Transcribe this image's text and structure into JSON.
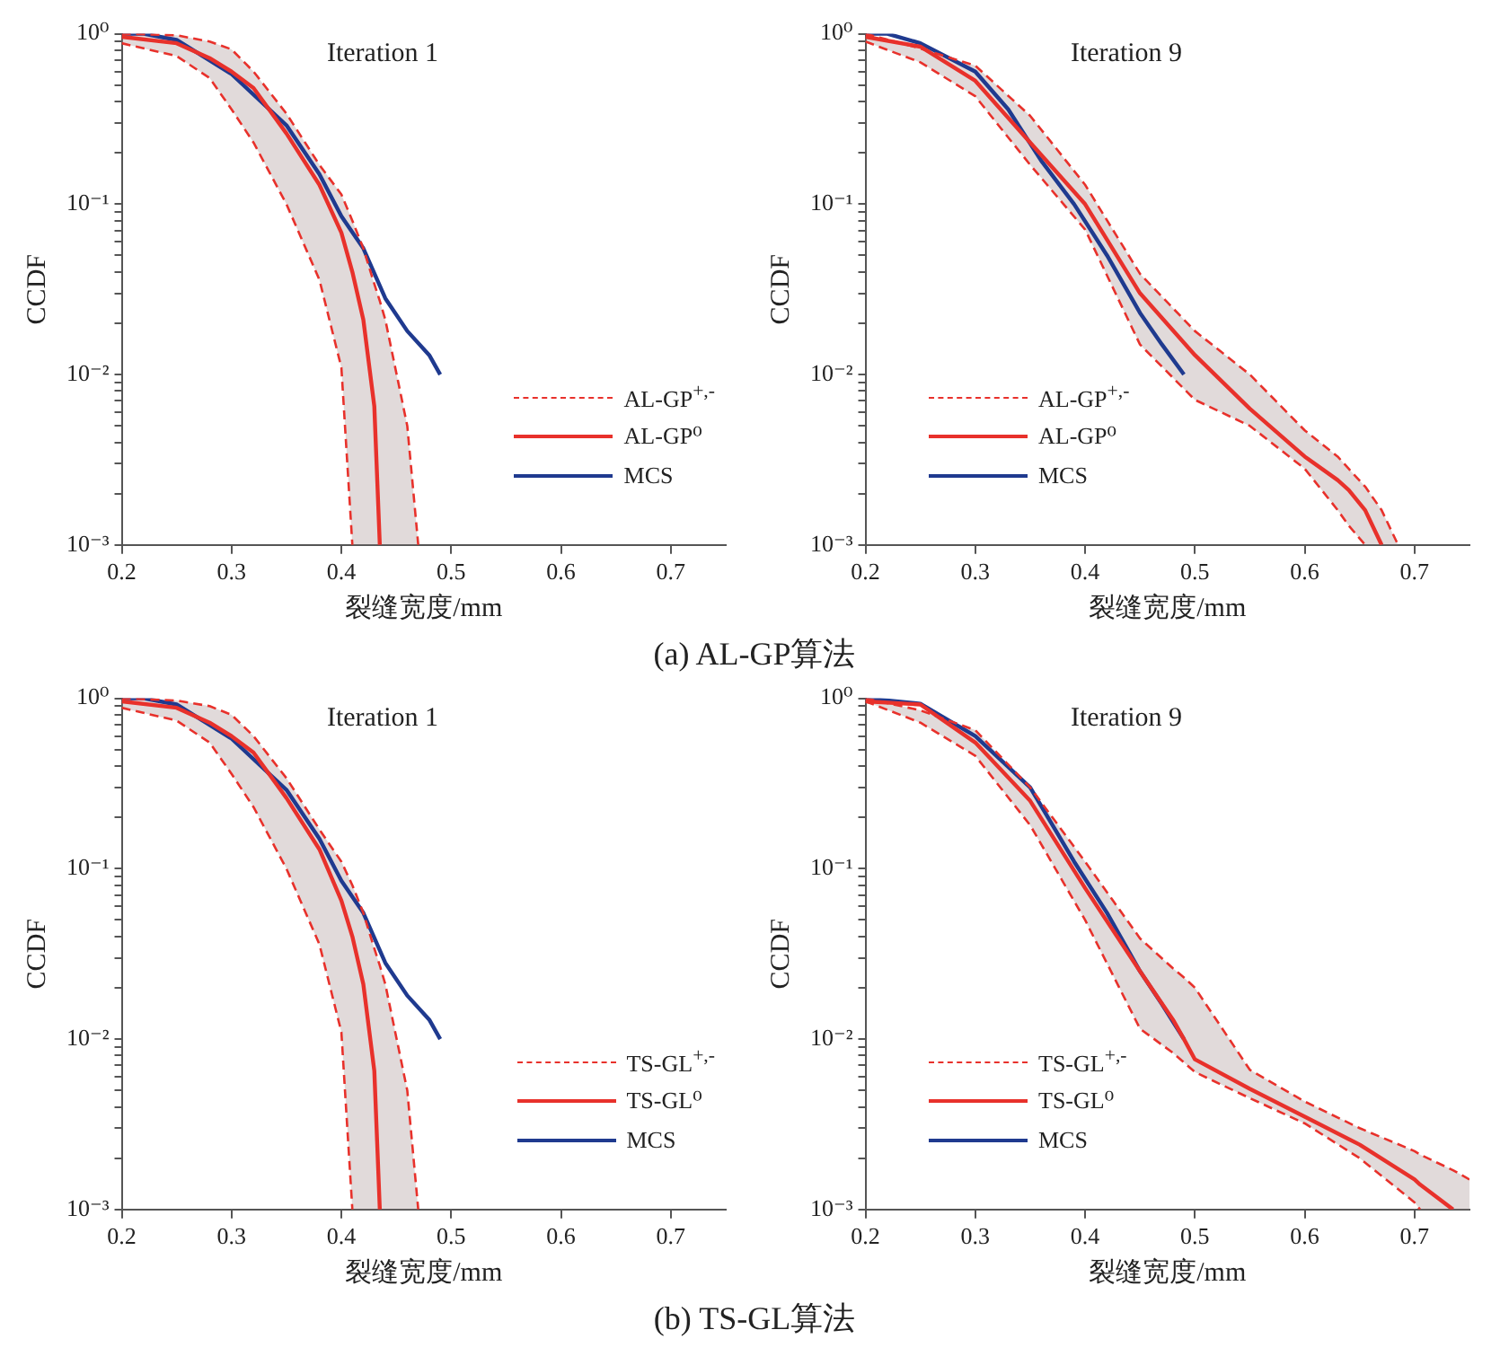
{
  "chart_data": [
    {
      "type": "line",
      "title": "Iteration 1",
      "xlabel": "裂缝宽度/mm",
      "ylabel": "CCDF",
      "annotations": [
        "(a) AL-GP算法"
      ],
      "xlim": [
        0.2,
        0.75
      ],
      "xticks": [
        0.2,
        0.3,
        0.4,
        0.5,
        0.6,
        0.7
      ],
      "ylim": [
        0.001,
        1
      ],
      "log": "y",
      "yticks": [
        {
          "value": 0.001,
          "label": "10⁻³"
        },
        {
          "value": 0.002,
          "label": null
        },
        {
          "value": 0.003,
          "label": null
        },
        {
          "value": 0.004,
          "label": null
        },
        {
          "value": 0.005,
          "label": null
        },
        {
          "value": 0.006,
          "label": null
        },
        {
          "value": 0.007,
          "label": null
        },
        {
          "value": 0.008,
          "label": null
        },
        {
          "value": 0.009,
          "label": null
        },
        {
          "value": 0.01,
          "label": "10⁻²"
        },
        {
          "value": 0.02,
          "label": null
        },
        {
          "value": 0.03,
          "label": null
        },
        {
          "value": 0.04,
          "label": null
        },
        {
          "value": 0.05,
          "label": null
        },
        {
          "value": 0.06,
          "label": null
        },
        {
          "value": 0.07,
          "label": null
        },
        {
          "value": 0.08,
          "label": null
        },
        {
          "value": 0.09,
          "label": null
        },
        {
          "value": 0.1,
          "label": "10⁻¹"
        },
        {
          "value": 0.2,
          "label": null
        },
        {
          "value": 0.3,
          "label": null
        },
        {
          "value": 0.4,
          "label": null
        },
        {
          "value": 0.5,
          "label": null
        },
        {
          "value": 0.6,
          "label": null
        },
        {
          "value": 0.7,
          "label": null
        },
        {
          "value": 0.8,
          "label": null
        },
        {
          "value": 0.9,
          "label": null
        },
        {
          "value": 1,
          "label": "10⁰"
        }
      ],
      "grid": false,
      "legend": "bottom right",
      "marker": "none",
      "series": [
        {
          "name": "AL-GP$^{+,-}$",
          "color": "#e8312b",
          "line_style": "dashed",
          "x": [
            0.2,
            0.25,
            0.28,
            0.3,
            0.32,
            0.35,
            0.38,
            0.4,
            0.41,
            0.42,
            0.43,
            0.435,
            0.44,
            0.46,
            0.47
          ],
          "values": [
            1.0,
            0.98,
            0.9,
            0.81,
            0.6,
            0.34,
            0.17,
            0.114,
            0.08,
            0.055,
            0.034,
            0.027,
            0.021,
            0.005,
            0.001
          ]
        },
        {
          "color": "#e8312b",
          "line_style": "dashed",
          "x": [
            0.2,
            0.25,
            0.28,
            0.3,
            0.32,
            0.35,
            0.38,
            0.4,
            0.41
          ],
          "values": [
            0.88,
            0.74,
            0.55,
            0.36,
            0.23,
            0.1,
            0.036,
            0.011,
            0.001
          ]
        },
        {
          "name": "AL-GP⁰",
          "color": "#e8312b",
          "line_style": "solid",
          "x": [
            0.2,
            0.25,
            0.28,
            0.3,
            0.32,
            0.35,
            0.38,
            0.4,
            0.41,
            0.42,
            0.43,
            0.435,
            0.44,
            0.46,
            0.47
          ],
          "values": [
            0.96,
            0.88,
            0.72,
            0.6,
            0.48,
            0.26,
            0.13,
            0.068,
            0.04,
            0.021,
            0.0065,
            0.001,
            null,
            null,
            null
          ],
          "upper": [
            1.0,
            0.98,
            0.9,
            0.81,
            0.6,
            0.34,
            0.17,
            0.114,
            0.08,
            0.055,
            0.034,
            0.027,
            0.021,
            0.005,
            0.001
          ],
          "lower": [
            0.88,
            0.74,
            0.55,
            0.36,
            0.23,
            0.1,
            0.036,
            0.011,
            0.001,
            0.001,
            0.001,
            0.001,
            0.001,
            0.001,
            0.001
          ]
        },
        {
          "name": "MCS",
          "color": "#1f3a8f",
          "line_style": "solid",
          "x": [
            0.2,
            0.22,
            0.25,
            0.3,
            0.35,
            0.38,
            0.4,
            0.42,
            0.44,
            0.46,
            0.48,
            0.49
          ],
          "values": [
            1.0,
            1.0,
            0.92,
            0.58,
            0.29,
            0.15,
            0.085,
            0.055,
            0.028,
            0.018,
            0.013,
            0.01
          ]
        }
      ]
    },
    {
      "type": "line",
      "title": "Iteration 9",
      "xlabel": "裂缝宽度/mm",
      "ylabel": "CCDF",
      "xlim": [
        0.2,
        0.75
      ],
      "xticks": [
        0.2,
        0.3,
        0.4,
        0.5,
        0.6,
        0.7
      ],
      "ylim": [
        0.001,
        1
      ],
      "log": "y",
      "yticks": [
        {
          "value": 0.001,
          "label": "10⁻³"
        },
        {
          "value": 0.002,
          "label": null
        },
        {
          "value": 0.003,
          "label": null
        },
        {
          "value": 0.004,
          "label": null
        },
        {
          "value": 0.005,
          "label": null
        },
        {
          "value": 0.006,
          "label": null
        },
        {
          "value": 0.007,
          "label": null
        },
        {
          "value": 0.008,
          "label": null
        },
        {
          "value": 0.009,
          "label": null
        },
        {
          "value": 0.01,
          "label": "10⁻²"
        },
        {
          "value": 0.02,
          "label": null
        },
        {
          "value": 0.03,
          "label": null
        },
        {
          "value": 0.04,
          "label": null
        },
        {
          "value": 0.05,
          "label": null
        },
        {
          "value": 0.06,
          "label": null
        },
        {
          "value": 0.07,
          "label": null
        },
        {
          "value": 0.08,
          "label": null
        },
        {
          "value": 0.09,
          "label": null
        },
        {
          "value": 0.1,
          "label": "10⁻¹"
        },
        {
          "value": 0.2,
          "label": null
        },
        {
          "value": 0.3,
          "label": null
        },
        {
          "value": 0.4,
          "label": null
        },
        {
          "value": 0.5,
          "label": null
        },
        {
          "value": 0.6,
          "label": null
        },
        {
          "value": 0.7,
          "label": null
        },
        {
          "value": 0.8,
          "label": null
        },
        {
          "value": 0.9,
          "label": null
        },
        {
          "value": 1,
          "label": "10⁰"
        }
      ],
      "grid": false,
      "legend": "bottom left",
      "marker": "none",
      "series": [
        {
          "name": "AL-GP$^{+,-}$",
          "color": "#e8312b",
          "line_style": "dashed",
          "x": [
            0.2,
            0.25,
            0.3,
            0.35,
            0.4,
            0.45,
            0.5,
            0.55,
            0.6,
            0.63,
            0.64,
            0.655,
            0.67,
            0.685
          ],
          "values": [
            1.0,
            0.82,
            0.65,
            0.33,
            0.13,
            0.039,
            0.018,
            0.01,
            0.0047,
            0.0033,
            0.0028,
            0.0022,
            0.0016,
            0.001
          ]
        },
        {
          "color": "#e8312b",
          "line_style": "dashed",
          "x": [
            0.2,
            0.25,
            0.3,
            0.35,
            0.4,
            0.45,
            0.5,
            0.55,
            0.6,
            0.63,
            0.64,
            0.655
          ],
          "values": [
            0.9,
            0.68,
            0.43,
            0.17,
            0.071,
            0.015,
            0.0071,
            0.005,
            0.0028,
            0.0016,
            0.0013,
            0.001
          ]
        },
        {
          "name": "AL-GP⁰",
          "color": "#e8312b",
          "line_style": "solid",
          "x": [
            0.2,
            0.25,
            0.3,
            0.35,
            0.4,
            0.45,
            0.5,
            0.55,
            0.6,
            0.63,
            0.64,
            0.655,
            0.67,
            0.685
          ],
          "values": [
            0.96,
            0.84,
            0.53,
            0.23,
            0.1,
            0.03,
            0.013,
            0.0063,
            0.0033,
            0.0024,
            0.0021,
            0.0016,
            0.001,
            null
          ],
          "upper": [
            1.0,
            0.82,
            0.65,
            0.33,
            0.13,
            0.039,
            0.018,
            0.01,
            0.0047,
            0.0033,
            0.0028,
            0.0022,
            0.0016,
            0.001
          ],
          "lower": [
            0.9,
            0.68,
            0.43,
            0.17,
            0.071,
            0.015,
            0.0071,
            0.005,
            0.0028,
            0.0016,
            0.0013,
            0.001,
            0.001,
            0.001
          ]
        },
        {
          "name": "MCS",
          "color": "#1f3a8f",
          "line_style": "solid",
          "x": [
            0.2,
            0.22,
            0.25,
            0.3,
            0.33,
            0.36,
            0.39,
            0.42,
            0.45,
            0.47,
            0.49
          ],
          "values": [
            1.0,
            1.0,
            0.88,
            0.6,
            0.36,
            0.18,
            0.1,
            0.05,
            0.023,
            0.015,
            0.01
          ]
        }
      ]
    },
    {
      "type": "line",
      "title": "Iteration 1",
      "xlabel": "裂缝宽度/mm",
      "ylabel": "CCDF",
      "annotations": [
        "(b) TS-GL算法"
      ],
      "xlim": [
        0.2,
        0.75
      ],
      "xticks": [
        0.2,
        0.3,
        0.4,
        0.5,
        0.6,
        0.7
      ],
      "ylim": [
        0.001,
        1
      ],
      "log": "y",
      "yticks": [
        {
          "value": 0.001,
          "label": "10⁻³"
        },
        {
          "value": 0.002,
          "label": null
        },
        {
          "value": 0.003,
          "label": null
        },
        {
          "value": 0.004,
          "label": null
        },
        {
          "value": 0.005,
          "label": null
        },
        {
          "value": 0.006,
          "label": null
        },
        {
          "value": 0.007,
          "label": null
        },
        {
          "value": 0.008,
          "label": null
        },
        {
          "value": 0.009,
          "label": null
        },
        {
          "value": 0.01,
          "label": "10⁻²"
        },
        {
          "value": 0.02,
          "label": null
        },
        {
          "value": 0.03,
          "label": null
        },
        {
          "value": 0.04,
          "label": null
        },
        {
          "value": 0.05,
          "label": null
        },
        {
          "value": 0.06,
          "label": null
        },
        {
          "value": 0.07,
          "label": null
        },
        {
          "value": 0.08,
          "label": null
        },
        {
          "value": 0.09,
          "label": null
        },
        {
          "value": 0.1,
          "label": "10⁻¹"
        },
        {
          "value": 0.2,
          "label": null
        },
        {
          "value": 0.3,
          "label": null
        },
        {
          "value": 0.4,
          "label": null
        },
        {
          "value": 0.5,
          "label": null
        },
        {
          "value": 0.6,
          "label": null
        },
        {
          "value": 0.7,
          "label": null
        },
        {
          "value": 0.8,
          "label": null
        },
        {
          "value": 0.9,
          "label": null
        },
        {
          "value": 1,
          "label": "10⁰"
        }
      ],
      "grid": false,
      "legend": "bottom right",
      "marker": "none",
      "series": [
        {
          "name": "TS-GL$^{+,-}$",
          "color": "#e8312b",
          "line_style": "dashed",
          "x": [
            0.2,
            0.25,
            0.28,
            0.3,
            0.32,
            0.35,
            0.38,
            0.4,
            0.41,
            0.42,
            0.43,
            0.435,
            0.44,
            0.46,
            0.47
          ],
          "values": [
            1.0,
            0.97,
            0.9,
            0.8,
            0.6,
            0.34,
            0.17,
            0.11,
            0.08,
            0.055,
            0.034,
            0.027,
            0.021,
            0.005,
            0.001
          ]
        },
        {
          "color": "#e8312b",
          "line_style": "dashed",
          "x": [
            0.2,
            0.25,
            0.28,
            0.3,
            0.32,
            0.35,
            0.38,
            0.4,
            0.41
          ],
          "values": [
            0.88,
            0.74,
            0.55,
            0.36,
            0.23,
            0.1,
            0.036,
            0.011,
            0.001
          ]
        },
        {
          "name": "TS-GL⁰",
          "color": "#e8312b",
          "line_style": "solid",
          "x": [
            0.2,
            0.25,
            0.28,
            0.3,
            0.32,
            0.35,
            0.38,
            0.4,
            0.41,
            0.42,
            0.43,
            0.435,
            0.44,
            0.46,
            0.47
          ],
          "values": [
            0.96,
            0.88,
            0.72,
            0.6,
            0.48,
            0.26,
            0.13,
            0.065,
            0.04,
            0.021,
            0.0065,
            0.001,
            null,
            null,
            null
          ],
          "upper": [
            1.0,
            0.97,
            0.9,
            0.8,
            0.6,
            0.34,
            0.17,
            0.11,
            0.08,
            0.055,
            0.034,
            0.027,
            0.021,
            0.005,
            0.001
          ],
          "lower": [
            0.88,
            0.74,
            0.55,
            0.36,
            0.23,
            0.1,
            0.036,
            0.011,
            0.001,
            0.001,
            0.001,
            0.001,
            0.001,
            0.001,
            0.001
          ]
        },
        {
          "name": "MCS",
          "color": "#1f3a8f",
          "line_style": "solid",
          "x": [
            0.2,
            0.22,
            0.25,
            0.3,
            0.35,
            0.38,
            0.4,
            0.42,
            0.44,
            0.46,
            0.48,
            0.49
          ],
          "values": [
            1.0,
            1.0,
            0.92,
            0.58,
            0.29,
            0.15,
            0.085,
            0.055,
            0.028,
            0.018,
            0.013,
            0.01
          ]
        }
      ]
    },
    {
      "type": "line",
      "title": "Iteration 9",
      "xlabel": "裂缝宽度/mm",
      "ylabel": "CCDF",
      "xlim": [
        0.2,
        0.75
      ],
      "xticks": [
        0.2,
        0.3,
        0.4,
        0.5,
        0.6,
        0.7
      ],
      "ylim": [
        0.001,
        1
      ],
      "log": "y",
      "yticks": [
        {
          "value": 0.001,
          "label": "10⁻³"
        },
        {
          "value": 0.002,
          "label": null
        },
        {
          "value": 0.003,
          "label": null
        },
        {
          "value": 0.004,
          "label": null
        },
        {
          "value": 0.005,
          "label": null
        },
        {
          "value": 0.006,
          "label": null
        },
        {
          "value": 0.007,
          "label": null
        },
        {
          "value": 0.008,
          "label": null
        },
        {
          "value": 0.009,
          "label": null
        },
        {
          "value": 0.01,
          "label": "10⁻²"
        },
        {
          "value": 0.02,
          "label": null
        },
        {
          "value": 0.03,
          "label": null
        },
        {
          "value": 0.04,
          "label": null
        },
        {
          "value": 0.05,
          "label": null
        },
        {
          "value": 0.06,
          "label": null
        },
        {
          "value": 0.07,
          "label": null
        },
        {
          "value": 0.08,
          "label": null
        },
        {
          "value": 0.09,
          "label": null
        },
        {
          "value": 0.1,
          "label": "10⁻¹"
        },
        {
          "value": 0.2,
          "label": null
        },
        {
          "value": 0.3,
          "label": null
        },
        {
          "value": 0.4,
          "label": null
        },
        {
          "value": 0.5,
          "label": null
        },
        {
          "value": 0.6,
          "label": null
        },
        {
          "value": 0.7,
          "label": null
        },
        {
          "value": 0.8,
          "label": null
        },
        {
          "value": 0.9,
          "label": null
        },
        {
          "value": 1,
          "label": "10⁰"
        }
      ],
      "grid": false,
      "legend": "bottom left",
      "marker": "none",
      "series": [
        {
          "name": "TS-GL$^{+,-}$",
          "color": "#e8312b",
          "line_style": "dashed",
          "x": [
            0.2,
            0.25,
            0.3,
            0.35,
            0.4,
            0.45,
            0.48,
            0.49,
            0.5,
            0.55,
            0.6,
            0.65,
            0.7,
            0.705,
            0.735,
            0.75
          ],
          "values": [
            1.0,
            0.85,
            0.65,
            0.3,
            0.11,
            0.039,
            0.026,
            0.023,
            0.02,
            0.0066,
            0.0043,
            0.003,
            0.0022,
            0.0021,
            0.0017,
            0.0015
          ]
        },
        {
          "color": "#e8312b",
          "line_style": "dashed",
          "x": [
            0.2,
            0.25,
            0.3,
            0.35,
            0.4,
            0.45,
            0.48,
            0.49,
            0.5,
            0.55,
            0.6,
            0.65,
            0.7,
            0.705
          ],
          "values": [
            0.96,
            0.72,
            0.46,
            0.18,
            0.05,
            0.0115,
            0.0083,
            0.0073,
            0.0064,
            0.0045,
            0.0032,
            0.002,
            0.0011,
            0.001
          ]
        },
        {
          "name": "TS-GL⁰",
          "color": "#e8312b",
          "line_style": "solid",
          "x": [
            0.2,
            0.25,
            0.3,
            0.35,
            0.4,
            0.45,
            0.48,
            0.49,
            0.5,
            0.55,
            0.6,
            0.65,
            0.7,
            0.705,
            0.735,
            0.75
          ],
          "values": [
            0.96,
            0.92,
            0.55,
            0.25,
            0.077,
            0.025,
            0.013,
            0.01,
            0.0076,
            0.0051,
            0.0035,
            0.0024,
            0.0015,
            0.0014,
            0.001,
            null
          ],
          "upper": [
            1.0,
            0.85,
            0.65,
            0.3,
            0.11,
            0.039,
            0.026,
            0.023,
            0.02,
            0.0066,
            0.0043,
            0.003,
            0.0022,
            0.0021,
            0.0017,
            0.0015
          ],
          "lower": [
            0.96,
            0.72,
            0.46,
            0.18,
            0.05,
            0.0115,
            0.0083,
            0.0073,
            0.0064,
            0.0045,
            0.0032,
            0.002,
            0.0011,
            0.001,
            0.001,
            0.001
          ]
        },
        {
          "name": "MCS",
          "color": "#1f3a8f",
          "line_style": "solid",
          "x": [
            0.2,
            0.25,
            0.3,
            0.35,
            0.39,
            0.42,
            0.45,
            0.47,
            0.49
          ],
          "values": [
            1.0,
            0.93,
            0.6,
            0.3,
            0.11,
            0.055,
            0.025,
            0.016,
            0.01
          ]
        }
      ]
    }
  ]
}
